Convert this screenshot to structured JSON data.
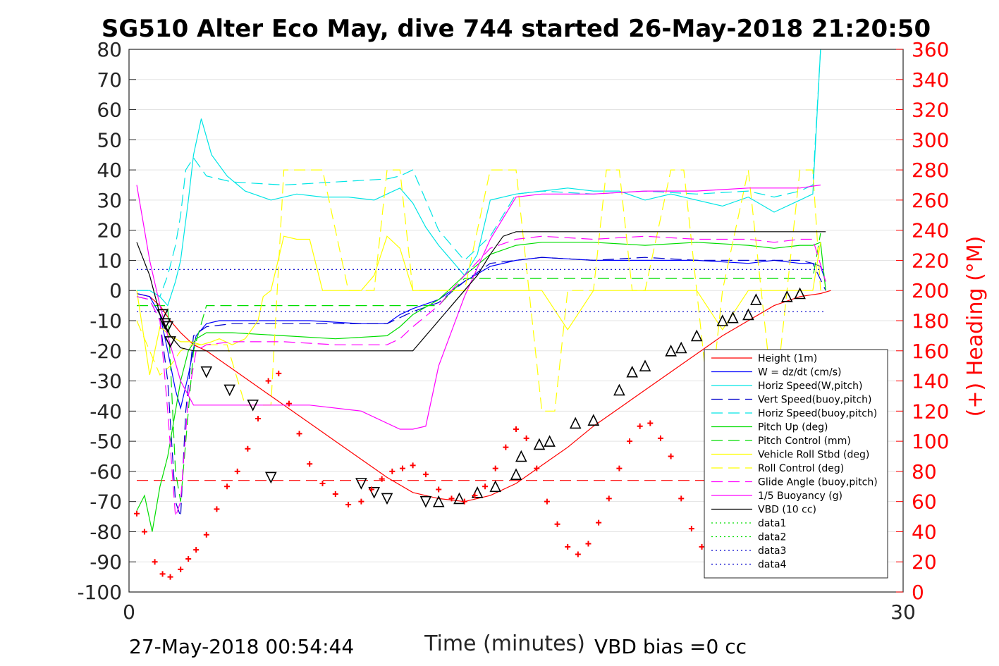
{
  "chart_data": {
    "type": "line",
    "title": "SG510 Alter Eco May, dive 744 started 26-May-2018 21:20:50",
    "xlabel": "Time (minutes)",
    "ylabel": "",
    "y2label": "(+) Heading (°M)",
    "xlim": [
      0,
      30
    ],
    "ylim": [
      -100,
      80
    ],
    "y2lim": [
      0,
      360
    ],
    "x_ticks": [
      "0",
      "30"
    ],
    "y_ticks": [
      "80",
      "70",
      "60",
      "50",
      "40",
      "30",
      "20",
      "10",
      "0",
      "-10",
      "-20",
      "-30",
      "-40",
      "-50",
      "-60",
      "-70",
      "-80",
      "-90",
      "-100"
    ],
    "y2_ticks": [
      "360",
      "340",
      "320",
      "300",
      "280",
      "260",
      "240",
      "220",
      "200",
      "180",
      "160",
      "140",
      "120",
      "100",
      "80",
      "60",
      "40",
      "20",
      "0"
    ],
    "grid": true,
    "legend_position": "lower-right",
    "footer_left": "27-May-2018 00:54:44",
    "footer_right": "VBD bias =0 cc",
    "colors": {
      "right_axis": "#ff0000"
    },
    "series": [
      {
        "name": "Height (1m)",
        "color": "#ff0000",
        "style": "solid",
        "x": [
          0.3,
          0.8,
          1.2,
          1.6,
          2.0,
          2.5,
          3.0,
          4.0,
          5.0,
          6.0,
          7.0,
          8.0,
          9.0,
          10.0,
          11.0,
          12.0,
          13.0,
          14.0,
          15.0,
          16.0,
          17.0,
          18.0,
          19.0,
          20.0,
          21.0,
          22.0,
          23.0,
          24.0,
          25.0,
          26.0,
          26.8,
          27.2
        ],
        "y": [
          -1,
          -2,
          -5,
          -10,
          -14,
          -18,
          -20,
          -26,
          -32,
          -38,
          -44,
          -50,
          -56,
          -62,
          -67,
          -69,
          -70,
          -68,
          -64,
          -58,
          -52,
          -45,
          -39,
          -33,
          -27,
          -21,
          -15,
          -10,
          -5,
          -2,
          -1,
          0
        ]
      },
      {
        "name": "W = dz/dt (cm/s)",
        "color": "#0000ff",
        "style": "solid",
        "x": [
          0.3,
          0.8,
          1.2,
          1.5,
          1.8,
          2.0,
          2.3,
          2.6,
          3.0,
          3.5,
          5,
          7,
          9,
          10,
          10.5,
          11,
          12,
          13,
          14,
          15,
          16,
          18,
          20,
          22,
          24,
          25,
          26,
          26.5,
          26.8,
          27.0
        ],
        "y": [
          -1,
          -2,
          -8,
          -20,
          -33,
          -39,
          -28,
          -15,
          -11,
          -10,
          -10,
          -10,
          -11,
          -11,
          -8,
          -6,
          -3,
          3,
          8,
          10,
          11,
          10,
          10,
          10,
          9,
          10,
          9,
          9,
          8,
          3
        ]
      },
      {
        "name": "Horiz Speed(W,pitch)",
        "color": "#00e5e5",
        "style": "solid",
        "x": [
          0.3,
          0.8,
          1.2,
          1.5,
          1.8,
          2.0,
          2.3,
          2.5,
          2.8,
          3.2,
          3.8,
          4.5,
          5.5,
          6.5,
          7.5,
          8.5,
          9.5,
          10.0,
          10.5,
          11,
          11.5,
          12,
          12.5,
          13,
          13.5,
          14,
          15,
          16,
          17,
          18,
          19,
          20,
          21,
          22,
          23,
          24,
          25,
          26,
          26.5,
          26.8
        ],
        "y": [
          0,
          0,
          -2,
          -5,
          3,
          10,
          30,
          45,
          57,
          45,
          38,
          33,
          30,
          32,
          31,
          31,
          30,
          32,
          34,
          29,
          21,
          15,
          10,
          5,
          12,
          30,
          32,
          33,
          34,
          33,
          33,
          30,
          32,
          30,
          28,
          31,
          26,
          30,
          32,
          80
        ]
      },
      {
        "name": "Vert Speed(buoy,pitch)",
        "color": "#0000cc",
        "style": "dashed",
        "x": [
          0.3,
          0.8,
          1.2,
          1.5,
          1.8,
          2.0,
          2.2,
          2.5,
          3.0,
          4,
          6,
          8,
          10,
          10.5,
          11,
          12,
          13,
          14,
          15,
          16,
          18,
          20,
          22,
          24,
          25,
          26,
          26.5,
          27.0
        ],
        "y": [
          -2,
          -3,
          -10,
          -30,
          -70,
          -75,
          -40,
          -15,
          -12,
          -11,
          -11,
          -11,
          -11,
          -9,
          -7,
          -4,
          3,
          9,
          10,
          11,
          10,
          11,
          10,
          10,
          10,
          10,
          9,
          0
        ]
      },
      {
        "name": "Horiz Speed(buoy,pitch)",
        "color": "#00e5e5",
        "style": "dashed",
        "x": [
          0.3,
          0.8,
          1.2,
          1.5,
          1.8,
          2.0,
          2.2,
          2.5,
          3.0,
          4,
          6,
          8,
          10,
          10.5,
          11,
          12,
          13,
          14,
          15,
          16,
          18,
          20,
          22,
          24,
          25,
          26,
          26.5,
          26.8
        ],
        "y": [
          0,
          0,
          -2,
          5,
          15,
          25,
          40,
          44,
          38,
          36,
          35,
          36,
          37,
          38,
          40,
          20,
          10,
          18,
          32,
          33,
          32,
          33,
          32,
          33,
          31,
          33,
          35,
          80
        ]
      },
      {
        "name": "Pitch Up (deg)",
        "color": "#00dd00",
        "style": "solid",
        "x": [
          0.3,
          0.6,
          0.9,
          1.2,
          1.5,
          1.8,
          2.0,
          2.3,
          2.6,
          3.0,
          4,
          6,
          8,
          10,
          10.5,
          11,
          12,
          13,
          14,
          15,
          16,
          18,
          20,
          22,
          24,
          25,
          26,
          26.5,
          26.8,
          27.0
        ],
        "y": [
          -73,
          -68,
          -80,
          -65,
          -55,
          -40,
          -30,
          -20,
          -16,
          -14,
          -14,
          -15,
          -16,
          -15,
          -12,
          -8,
          -3,
          5,
          12,
          15,
          16,
          16,
          15,
          16,
          15,
          14,
          15,
          15,
          16,
          0
        ]
      },
      {
        "name": "Pitch Control (mm)",
        "color": "#00dd00",
        "style": "dashed",
        "x": [
          0.3,
          0.8,
          1.2,
          1.5,
          1.8,
          2.0,
          2.5,
          3.0,
          5,
          7,
          9,
          10.5,
          11,
          12,
          13,
          14,
          16,
          18,
          20,
          22,
          24,
          26,
          26.5,
          26.8
        ],
        "y": [
          -5,
          -5,
          -5,
          -5,
          -60,
          -70,
          -20,
          -5,
          -5,
          -5,
          -5,
          -5,
          -5,
          -5,
          4,
          4,
          4,
          4,
          4,
          4,
          4,
          4,
          4,
          19
        ]
      },
      {
        "name": "Vehicle Roll Stbd (deg)",
        "color": "#ffff00",
        "style": "solid",
        "x": [
          0.3,
          0.8,
          1.2,
          1.6,
          2.0,
          2.4,
          2.8,
          3.2,
          3.5,
          4.0,
          4.5,
          5.0,
          5.2,
          5.5,
          6.0,
          6.5,
          7.0,
          7.5,
          8.0,
          9.0,
          9.5,
          10.0,
          10.5,
          11.0,
          11.5,
          12.0,
          13,
          14,
          15,
          16,
          17,
          18,
          19,
          20,
          21,
          22,
          23,
          24,
          25,
          26,
          26.5,
          26.8
        ],
        "y": [
          0,
          -28,
          -12,
          -15,
          -17,
          -17,
          -18,
          -17,
          -16,
          -18,
          -16,
          -10,
          -2,
          0,
          18,
          17,
          17,
          0,
          0,
          0,
          5,
          18,
          14,
          0,
          0,
          0,
          0,
          0,
          0,
          0,
          -13,
          0,
          0,
          0,
          0,
          0,
          -13,
          0,
          0,
          0,
          0,
          16
        ]
      },
      {
        "name": "Roll Control (deg)",
        "color": "#ffff00",
        "style": "dashed",
        "x": [
          0.3,
          0.8,
          1.2,
          1.6,
          2.0,
          2.4,
          2.8,
          3.2,
          3.8,
          4.5,
          5.5,
          6.0,
          7.5,
          8.5,
          9.5,
          10.0,
          10.5,
          11.0,
          12.0,
          12.5,
          13,
          14,
          15,
          15.5,
          16,
          16.5,
          17,
          18,
          18.5,
          19,
          19.5,
          20,
          21,
          21.5,
          22,
          22.5,
          23,
          24,
          25,
          25.5,
          26,
          26.5,
          26.8
        ],
        "y": [
          -10,
          -20,
          -28,
          -25,
          -20,
          -18,
          -18,
          -18,
          -18,
          -38,
          -38,
          40,
          40,
          0,
          0,
          40,
          40,
          0,
          0,
          0,
          0,
          40,
          40,
          0,
          -40,
          -40,
          0,
          0,
          40,
          40,
          0,
          0,
          40,
          40,
          0,
          -40,
          0,
          40,
          -40,
          0,
          40,
          40,
          0
        ]
      },
      {
        "name": "Glide Angle (buoy,pitch)",
        "color": "#ff00ff",
        "style": "dashed",
        "x": [
          0.3,
          0.8,
          1.2,
          1.5,
          1.8,
          2.0,
          2.3,
          2.6,
          3.0,
          4,
          6,
          8,
          10,
          10.5,
          11,
          12,
          13,
          14,
          15,
          16,
          18,
          20,
          22,
          24,
          25,
          26,
          26.5,
          27.0
        ],
        "y": [
          -2,
          -3,
          -10,
          -40,
          -75,
          -70,
          -35,
          -20,
          -18,
          -17,
          -17,
          -18,
          -18,
          -16,
          -12,
          -5,
          5,
          14,
          17,
          18,
          17,
          18,
          17,
          17,
          16,
          17,
          17,
          3
        ]
      },
      {
        "name": "1/5 Buoyancy (g)",
        "color": "#ff00ff",
        "style": "solid",
        "x": [
          0.3,
          0.8,
          1.2,
          1.5,
          2.0,
          2.5,
          3.0,
          5,
          7,
          9,
          10.5,
          11,
          11.5,
          12,
          13,
          14,
          15,
          16,
          18,
          20,
          22,
          24,
          26,
          26.8
        ],
        "y": [
          35,
          10,
          -5,
          -15,
          -30,
          -38,
          -38,
          -38,
          -38,
          -40,
          -46,
          -46,
          -45,
          -25,
          -2,
          17,
          31,
          32,
          32,
          33,
          33,
          34,
          34,
          35
        ]
      },
      {
        "name": "VBD (10 cc)",
        "color": "#000000",
        "style": "solid",
        "x": [
          0.3,
          0.8,
          1.2,
          1.6,
          2.0,
          2.5,
          3.0,
          10.5,
          11.0,
          12.0,
          13.0,
          13.5,
          14.0,
          14.5,
          15,
          16,
          20,
          26.8,
          27.0
        ],
        "y": [
          16,
          5,
          -8,
          -15,
          -19,
          -20,
          -20,
          -20,
          -20,
          -10,
          0,
          5,
          12,
          18,
          19.5,
          19.5,
          19.5,
          19.5,
          19.5
        ]
      },
      {
        "name": "data1",
        "color": "#00dd00",
        "style": "dotted",
        "x": [],
        "y": []
      },
      {
        "name": "data2",
        "color": "#00dd00",
        "style": "dotted",
        "x": [],
        "y": []
      },
      {
        "name": "data3",
        "color": "#0000cc",
        "style": "dotted",
        "x": [
          0.3,
          27.0
        ],
        "y": [
          7,
          7
        ]
      },
      {
        "name": "data4",
        "color": "#0000cc",
        "style": "dotted",
        "x": [
          0.3,
          27.0
        ],
        "y": [
          -7,
          -7
        ]
      }
    ],
    "extra_lines": [
      {
        "color": "#ff0000",
        "style": "dashed",
        "x": [
          0.3,
          27.0
        ],
        "y": [
          -63,
          -63
        ]
      }
    ],
    "height_markers": {
      "down_x": [
        1.3,
        1.4,
        1.5,
        1.6,
        3.0,
        3.9,
        4.8,
        5.5,
        9.0,
        9.5,
        10.0,
        11.5
      ],
      "down_y": [
        -8,
        -11,
        -12,
        -17,
        -27,
        -33,
        -38,
        -62,
        -64,
        -67,
        -69,
        -70
      ],
      "up_x": [
        12.0,
        12.8,
        13.5,
        14.2,
        15.0,
        15.2,
        15.9,
        16.3,
        17.3,
        18.0,
        19.0,
        19.5,
        20.0,
        21.0,
        21.4,
        22.0,
        23.0,
        23.4,
        24.0,
        24.3,
        25.5,
        26.0
      ],
      "up_y": [
        -70,
        -69,
        -67,
        -65,
        -61,
        -55,
        -51,
        -50,
        -44,
        -43,
        -33,
        -27,
        -25,
        -20,
        -19,
        -15,
        -10,
        -9,
        -8,
        -3,
        -2,
        -1
      ]
    },
    "heading": {
      "color": "#ff0000",
      "x": [
        0.3,
        0.6,
        1.0,
        1.3,
        1.6,
        2.0,
        2.3,
        2.6,
        3.0,
        3.4,
        3.8,
        4.2,
        4.6,
        5.0,
        5.4,
        5.8,
        6.2,
        6.6,
        7.0,
        7.5,
        8.0,
        8.5,
        9.0,
        9.4,
        9.8,
        10.2,
        10.6,
        11.0,
        11.5,
        12.0,
        12.5,
        13.0,
        13.4,
        13.8,
        14.2,
        14.6,
        15.0,
        15.4,
        15.8,
        16.2,
        16.6,
        17.0,
        17.4,
        17.8,
        18.2,
        18.6,
        19.0,
        19.4,
        19.8,
        20.2,
        20.6,
        21.0,
        21.4,
        21.8,
        22.2,
        22.6,
        23.0,
        23.4,
        23.8,
        24.2,
        24.6,
        25.0,
        25.4,
        25.8,
        26.2
      ],
      "y": [
        52,
        40,
        20,
        12,
        10,
        15,
        22,
        28,
        38,
        55,
        70,
        80,
        95,
        115,
        140,
        145,
        125,
        105,
        85,
        72,
        65,
        58,
        60,
        68,
        75,
        80,
        82,
        84,
        78,
        68,
        62,
        60,
        64,
        70,
        82,
        96,
        108,
        102,
        82,
        60,
        45,
        30,
        25,
        32,
        46,
        62,
        82,
        100,
        110,
        112,
        102,
        90,
        62,
        42,
        30,
        25,
        28,
        38,
        55,
        75,
        95,
        112,
        120,
        130,
        125
      ]
    }
  }
}
